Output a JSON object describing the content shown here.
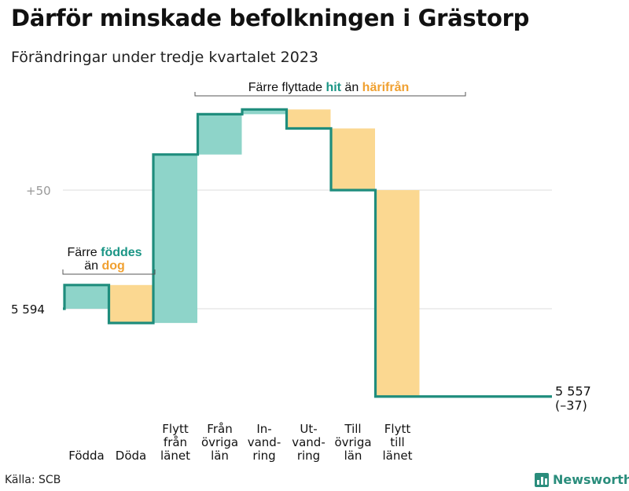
{
  "title": "Därför minskade befolkningen i Grästorp",
  "subtitle": "Förändringar under tredje kvartalet 2023",
  "source": "Källa: SCB",
  "brand": "Newsworthy",
  "colors": {
    "increase": "#8ed4c9",
    "decrease": "#fbd891",
    "line": "#1f8d7d",
    "teal_text": "#1a9585",
    "orange_text": "#f0a030",
    "grid": "#dddddd",
    "axis_text": "#999999"
  },
  "annotations": {
    "births": {
      "line1": "Färre ",
      "line1_hl": "föddes",
      "line2": "än ",
      "line2_hl": "dog"
    },
    "moves": {
      "pre": "Färre flyttade ",
      "hl1": "hit",
      "mid": " än ",
      "hl2": "härifrån"
    }
  },
  "end_label": {
    "value": "5 557",
    "change": "(–37)"
  },
  "chart_data": {
    "type": "waterfall",
    "title": "Därför minskade befolkningen i Grästorp",
    "subtitle": "Förändringar under tredje kvartalet 2023",
    "start_value": 5594,
    "end_value": 5557,
    "total_change": -37,
    "y_tick_labels": [
      {
        "value": 5594,
        "label": "5  594"
      },
      {
        "value": 5644,
        "label": "+50"
      }
    ],
    "categories": [
      {
        "label": [
          "Födda"
        ],
        "change": 10,
        "type": "increase"
      },
      {
        "label": [
          "Döda"
        ],
        "change": -16,
        "type": "decrease"
      },
      {
        "label": [
          "Flytt",
          "från",
          "länet"
        ],
        "change": 71,
        "type": "increase"
      },
      {
        "label": [
          "Från",
          "övriga",
          "län"
        ],
        "change": 17,
        "type": "increase"
      },
      {
        "label": [
          "In-",
          "vand-",
          "ring"
        ],
        "change": 2,
        "type": "increase"
      },
      {
        "label": [
          "Ut-",
          "vand-",
          "ring"
        ],
        "change": -8,
        "type": "decrease"
      },
      {
        "label": [
          "Till",
          "övriga",
          "län"
        ],
        "change": -26,
        "type": "decrease"
      },
      {
        "label": [
          "Flytt",
          "till",
          "länet"
        ],
        "change": -87,
        "type": "decrease"
      }
    ]
  }
}
